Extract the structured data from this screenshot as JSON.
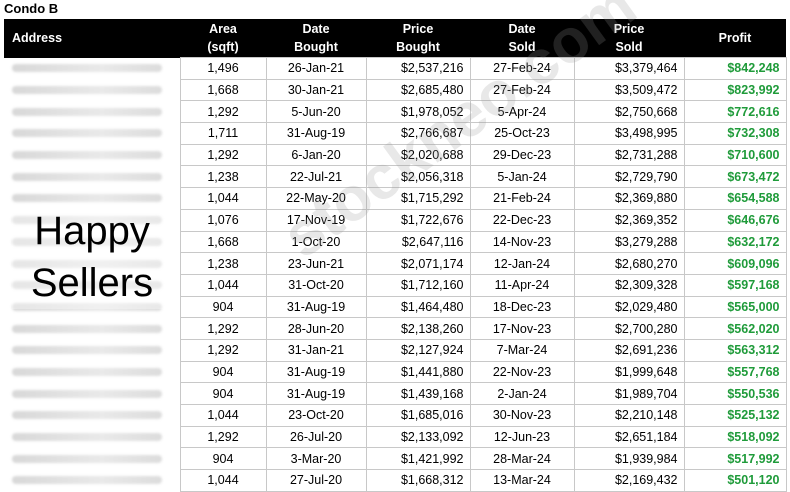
{
  "title": "Condo B",
  "headers": {
    "address": "Address",
    "area_1": "Area",
    "area_2": "(sqft)",
    "date_bought_1": "Date",
    "date_bought_2": "Bought",
    "price_bought_1": "Price",
    "price_bought_2": "Bought",
    "date_sold_1": "Date",
    "date_sold_2": "Sold",
    "price_sold_1": "Price",
    "price_sold_2": "Sold",
    "profit": "Profit"
  },
  "rows": [
    {
      "area": "1,496",
      "date_bought": "26-Jan-21",
      "price_bought": "$2,537,216",
      "date_sold": "27-Feb-24",
      "price_sold": "$3,379,464",
      "profit": "$842,248"
    },
    {
      "area": "1,668",
      "date_bought": "30-Jan-21",
      "price_bought": "$2,685,480",
      "date_sold": "27-Feb-24",
      "price_sold": "$3,509,472",
      "profit": "$823,992"
    },
    {
      "area": "1,292",
      "date_bought": "5-Jun-20",
      "price_bought": "$1,978,052",
      "date_sold": "5-Apr-24",
      "price_sold": "$2,750,668",
      "profit": "$772,616"
    },
    {
      "area": "1,711",
      "date_bought": "31-Aug-19",
      "price_bought": "$2,766,687",
      "date_sold": "25-Oct-23",
      "price_sold": "$3,498,995",
      "profit": "$732,308"
    },
    {
      "area": "1,292",
      "date_bought": "6-Jan-20",
      "price_bought": "$2,020,688",
      "date_sold": "29-Dec-23",
      "price_sold": "$2,731,288",
      "profit": "$710,600"
    },
    {
      "area": "1,238",
      "date_bought": "22-Jul-21",
      "price_bought": "$2,056,318",
      "date_sold": "5-Jan-24",
      "price_sold": "$2,729,790",
      "profit": "$673,472"
    },
    {
      "area": "1,044",
      "date_bought": "22-May-20",
      "price_bought": "$1,715,292",
      "date_sold": "21-Feb-24",
      "price_sold": "$2,369,880",
      "profit": "$654,588"
    },
    {
      "area": "1,076",
      "date_bought": "17-Nov-19",
      "price_bought": "$1,722,676",
      "date_sold": "22-Dec-23",
      "price_sold": "$2,369,352",
      "profit": "$646,676"
    },
    {
      "area": "1,668",
      "date_bought": "1-Oct-20",
      "price_bought": "$2,647,116",
      "date_sold": "14-Nov-23",
      "price_sold": "$3,279,288",
      "profit": "$632,172"
    },
    {
      "area": "1,238",
      "date_bought": "23-Jun-21",
      "price_bought": "$2,071,174",
      "date_sold": "12-Jan-24",
      "price_sold": "$2,680,270",
      "profit": "$609,096"
    },
    {
      "area": "1,044",
      "date_bought": "31-Oct-20",
      "price_bought": "$1,712,160",
      "date_sold": "11-Apr-24",
      "price_sold": "$2,309,328",
      "profit": "$597,168"
    },
    {
      "area": "904",
      "date_bought": "31-Aug-19",
      "price_bought": "$1,464,480",
      "date_sold": "18-Dec-23",
      "price_sold": "$2,029,480",
      "profit": "$565,000"
    },
    {
      "area": "1,292",
      "date_bought": "28-Jun-20",
      "price_bought": "$2,138,260",
      "date_sold": "17-Nov-23",
      "price_sold": "$2,700,280",
      "profit": "$562,020"
    },
    {
      "area": "1,292",
      "date_bought": "31-Jan-21",
      "price_bought": "$2,127,924",
      "date_sold": "7-Mar-24",
      "price_sold": "$2,691,236",
      "profit": "$563,312"
    },
    {
      "area": "904",
      "date_bought": "31-Aug-19",
      "price_bought": "$1,441,880",
      "date_sold": "22-Nov-23",
      "price_sold": "$1,999,648",
      "profit": "$557,768"
    },
    {
      "area": "904",
      "date_bought": "31-Aug-19",
      "price_bought": "$1,439,168",
      "date_sold": "2-Jan-24",
      "price_sold": "$1,989,704",
      "profit": "$550,536"
    },
    {
      "area": "1,044",
      "date_bought": "23-Oct-20",
      "price_bought": "$1,685,016",
      "date_sold": "30-Nov-23",
      "price_sold": "$2,210,148",
      "profit": "$525,132"
    },
    {
      "area": "1,292",
      "date_bought": "26-Jul-20",
      "price_bought": "$2,133,092",
      "date_sold": "12-Jun-23",
      "price_sold": "$2,651,184",
      "profit": "$518,092"
    },
    {
      "area": "904",
      "date_bought": "3-Mar-20",
      "price_bought": "$1,421,992",
      "date_sold": "28-Mar-24",
      "price_sold": "$1,939,984",
      "profit": "$517,992"
    },
    {
      "area": "1,044",
      "date_bought": "27-Jul-20",
      "price_bought": "$1,668,312",
      "date_sold": "13-Mar-24",
      "price_sold": "$2,169,432",
      "profit": "$501,120"
    }
  ],
  "overlay": {
    "line1": "Happy",
    "line2": "Sellers"
  },
  "watermark": "stockneo.com",
  "colors": {
    "header_bg": "#000000",
    "header_text": "#ffffff",
    "profit": "#1f9b3a"
  }
}
